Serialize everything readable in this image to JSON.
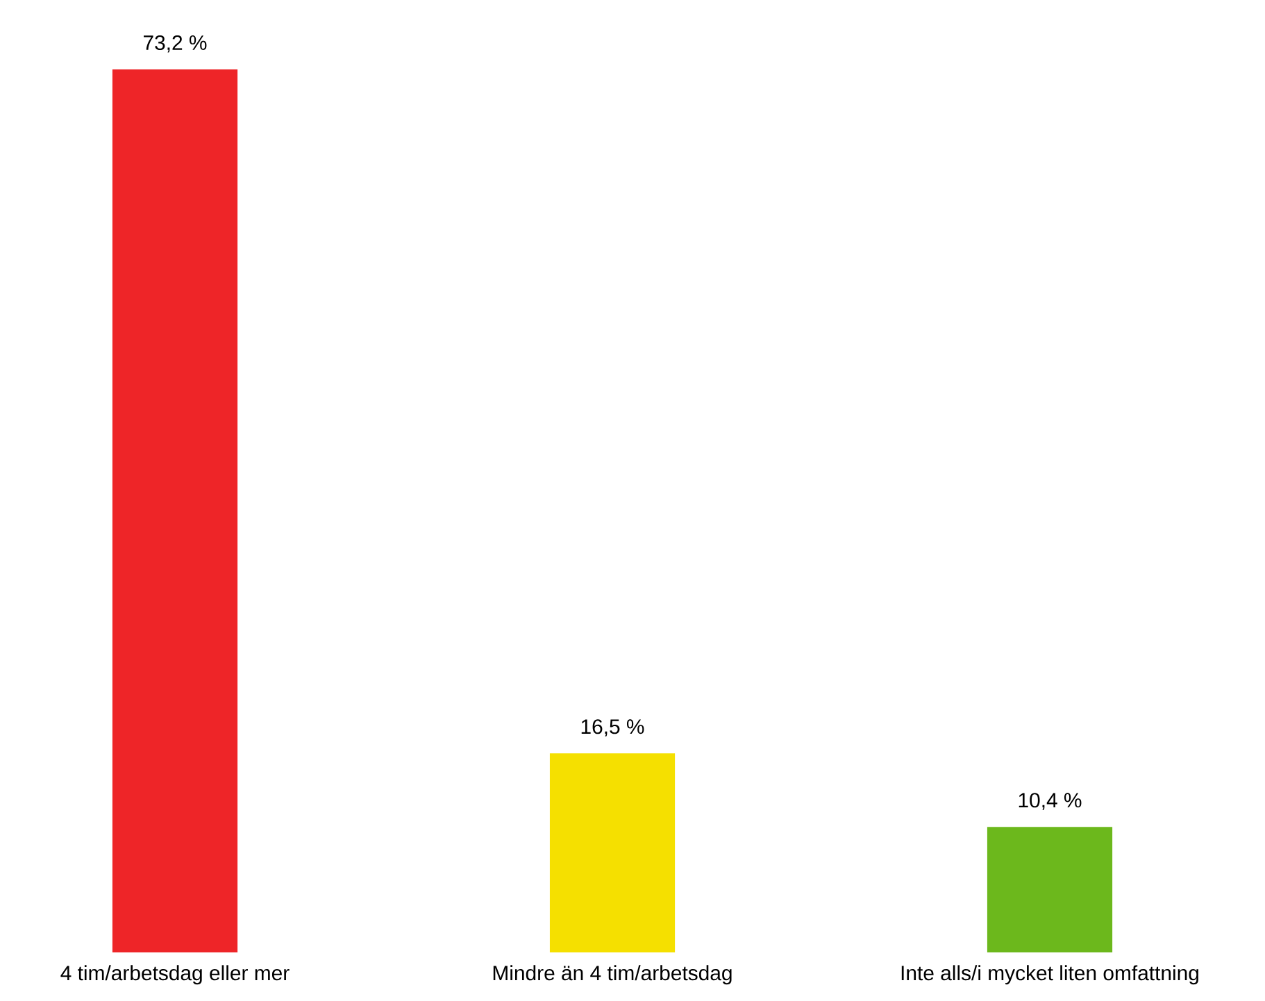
{
  "chart_data": {
    "type": "bar",
    "categories": [
      "4 tim/arbetsdag eller mer",
      "Mindre än 4 tim/arbetsdag",
      "Inte alls/i mycket liten omfattning"
    ],
    "values": [
      73.2,
      16.5,
      10.4
    ],
    "colors": [
      "#ee2528",
      "#f5e000",
      "#6cb81c"
    ],
    "value_labels": [
      "73,2 %",
      "16,5 %",
      "10,4 %"
    ]
  }
}
